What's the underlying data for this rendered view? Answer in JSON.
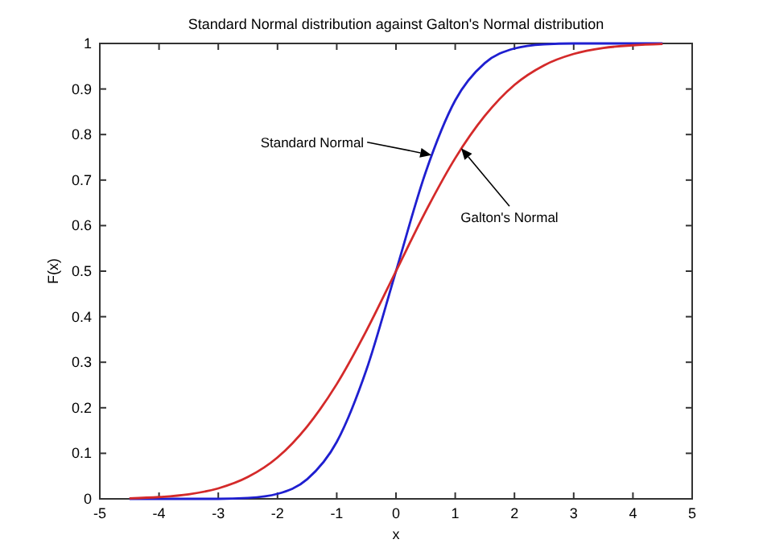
{
  "chart_data": {
    "type": "line",
    "title": "Standard Normal distribution against Galton's Normal distribution",
    "xlabel": "x",
    "ylabel": "F(x)",
    "x": [
      -4.5,
      -4,
      -3.5,
      -3,
      -2.5,
      -2,
      -1.5,
      -1,
      -0.5,
      0,
      0.5,
      1,
      1.5,
      2,
      2.5,
      3,
      3.5,
      4,
      4.5
    ],
    "series": [
      {
        "color": "#1f1fd0",
        "values": [
          0,
          0,
          0,
          0,
          0.002,
          0.011,
          0.043,
          0.125,
          0.283,
          0.5,
          0.717,
          0.875,
          0.957,
          0.989,
          0.998,
          1,
          1,
          1,
          1
        ]
      },
      {
        "color": "#d42a2a",
        "values": [
          0.001,
          0.004,
          0.01,
          0.023,
          0.048,
          0.091,
          0.159,
          0.252,
          0.369,
          0.5,
          0.631,
          0.748,
          0.841,
          0.909,
          0.952,
          0.977,
          0.99,
          0.996,
          0.999
        ]
      }
    ],
    "annotations": [
      {
        "text": "Standard Normal",
        "x": 0.6,
        "y": 0.755
      },
      {
        "text": "Galton's Normal",
        "x": 1.1,
        "y": 0.77
      }
    ],
    "xlim": [
      -5,
      5
    ],
    "xticks": [
      -5,
      -4,
      -3,
      -2,
      -1,
      0,
      1,
      2,
      3,
      4,
      5
    ],
    "ylim": [
      0,
      1
    ],
    "yticks": [
      0,
      0.1,
      0.2,
      0.3,
      0.4,
      0.5,
      0.6,
      0.7,
      0.8,
      0.9,
      1
    ],
    "grid": false,
    "marker": "none",
    "line_style": "solid"
  }
}
